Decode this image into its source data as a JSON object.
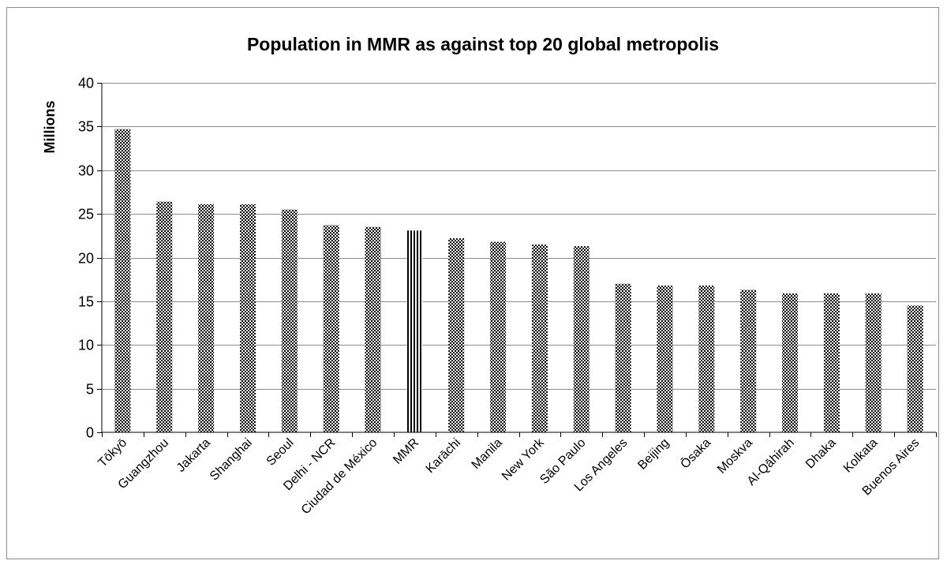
{
  "chart_data": {
    "type": "bar",
    "title": "Population in MMR as against top 20 global metropolis",
    "xlabel": "",
    "ylabel": "Millions",
    "ylim": [
      0,
      40
    ],
    "yticks": [
      0,
      5,
      10,
      15,
      20,
      25,
      30,
      35,
      40
    ],
    "grid": true,
    "legend": "none",
    "categories": [
      "Tōkyō",
      "Guangzhou",
      "Jakarta",
      "Shanghai",
      "Seoul",
      "Delhi - NCR",
      "Ciudad de México",
      "MMR",
      "Karāchi",
      "Manila",
      "New York",
      "São Paulo",
      "Los Angeles",
      "Beijing",
      "Ōsaka",
      "Moskva",
      "Al-Qāhirah",
      "Dhaka",
      "Kolkata",
      "Buenos Aires"
    ],
    "values": [
      34.7,
      26.4,
      26.1,
      26.1,
      25.5,
      23.7,
      23.5,
      23.1,
      22.2,
      21.8,
      21.5,
      21.3,
      17.0,
      16.8,
      16.8,
      16.3,
      15.9,
      15.9,
      15.9,
      14.5
    ],
    "highlight": "MMR",
    "bar_color": "#000000",
    "bar_fill_pattern": "checker",
    "highlight_fill_pattern": "vertical-stripes"
  }
}
